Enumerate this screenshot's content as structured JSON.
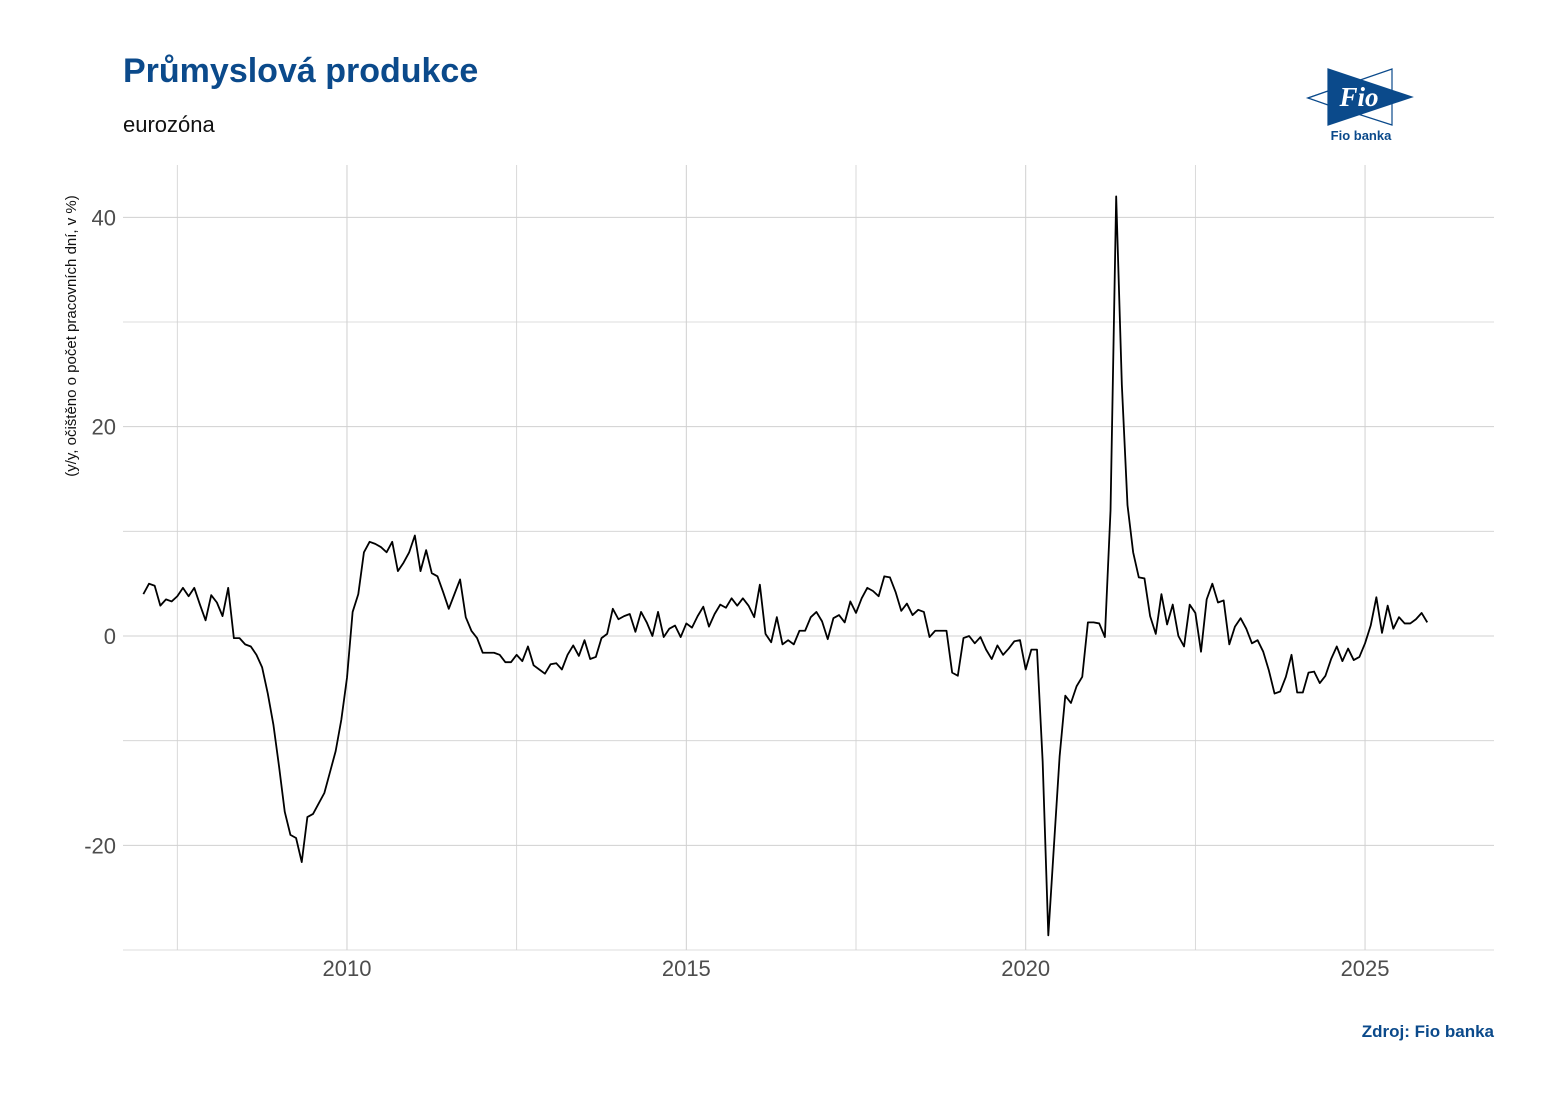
{
  "title": "Průmyslová produkce",
  "subtitle": "eurozóna",
  "source": "Zdroj: Fio banka",
  "logo": {
    "mark": "Fio",
    "name": "Fio banka",
    "color": "#0b4a8b"
  },
  "colors": {
    "line": "#000000",
    "grid": "#d0d0d0",
    "title": "#0b4a8b"
  },
  "chart_data": {
    "type": "line",
    "ylabel": "(y/y, očištěno o počet pracovních dní, v %)",
    "xlabel": "",
    "xlim": [
      2006.7,
      2026.9
    ],
    "ylim": [
      -30,
      45
    ],
    "x_ticks": [
      2010,
      2015,
      2020,
      2025
    ],
    "y_ticks": [
      -20,
      0,
      20,
      40
    ],
    "grid": true,
    "x_start": 2007.0,
    "x_step_months": 1,
    "values": [
      4.0,
      5.0,
      4.8,
      2.9,
      3.5,
      3.3,
      3.8,
      4.6,
      3.8,
      4.6,
      3.0,
      1.5,
      3.9,
      3.2,
      1.9,
      4.6,
      -0.2,
      -0.2,
      -0.8,
      -1.0,
      -1.8,
      -3.0,
      -5.5,
      -8.5,
      -12.5,
      -16.8,
      -19.0,
      -19.3,
      -21.6,
      -17.3,
      -17.0,
      -16.0,
      -15.0,
      -13.0,
      -11.0,
      -8.0,
      -4.0,
      2.3,
      4.0,
      8.0,
      9.0,
      8.8,
      8.5,
      8.0,
      9.0,
      6.2,
      7.0,
      8.0,
      9.6,
      6.2,
      8.2,
      6.0,
      5.7,
      4.2,
      2.6,
      4.0,
      5.4,
      1.8,
      0.5,
      -0.2,
      -1.6,
      -1.6,
      -1.6,
      -1.8,
      -2.5,
      -2.5,
      -1.8,
      -2.4,
      -1.0,
      -2.8,
      -3.2,
      -3.6,
      -2.7,
      -2.6,
      -3.2,
      -1.8,
      -0.9,
      -1.9,
      -0.4,
      -2.2,
      -2.0,
      -0.2,
      0.2,
      2.6,
      1.6,
      1.9,
      2.1,
      0.4,
      2.3,
      1.3,
      0.0,
      2.3,
      -0.1,
      0.7,
      1.0,
      -0.1,
      1.2,
      0.8,
      1.9,
      2.8,
      0.9,
      2.1,
      3.0,
      2.7,
      3.6,
      2.9,
      3.6,
      2.9,
      1.8,
      4.9,
      0.2,
      -0.6,
      1.8,
      -0.8,
      -0.4,
      -0.8,
      0.5,
      0.5,
      1.8,
      2.3,
      1.4,
      -0.3,
      1.7,
      2.0,
      1.3,
      3.3,
      2.2,
      3.6,
      4.6,
      4.3,
      3.8,
      5.7,
      5.6,
      4.2,
      2.4,
      3.1,
      2.0,
      2.5,
      2.3,
      -0.1,
      0.5,
      0.5,
      0.5,
      -3.5,
      -3.8,
      -0.2,
      0.0,
      -0.7,
      -0.1,
      -1.3,
      -2.2,
      -0.9,
      -1.8,
      -1.2,
      -0.5,
      -0.4,
      -3.2,
      -1.3,
      -1.3,
      -12.0,
      -28.6,
      -20.0,
      -11.5,
      -5.7,
      -6.4,
      -4.8,
      -3.9,
      1.3,
      1.3,
      1.2,
      -0.1,
      12.0,
      42.0,
      24.0,
      12.5,
      8.0,
      5.6,
      5.5,
      1.9,
      0.2,
      4.0,
      1.1,
      3.0,
      0.0,
      -1.0,
      3.0,
      2.2,
      -1.5,
      3.5,
      5.0,
      3.2,
      3.4,
      -0.8,
      0.9,
      1.7,
      0.7,
      -0.7,
      -0.4,
      -1.5,
      -3.3,
      -5.5,
      -5.3,
      -3.9,
      -1.8,
      -5.4,
      -5.4,
      -3.5,
      -3.4,
      -4.5,
      -3.8,
      -2.2,
      -1.0,
      -2.4,
      -1.2,
      -2.3,
      -2.0,
      -0.7,
      1.0,
      3.7,
      0.3,
      2.9,
      0.7,
      1.8,
      1.2,
      1.2,
      1.6,
      2.2,
      1.3
    ]
  }
}
